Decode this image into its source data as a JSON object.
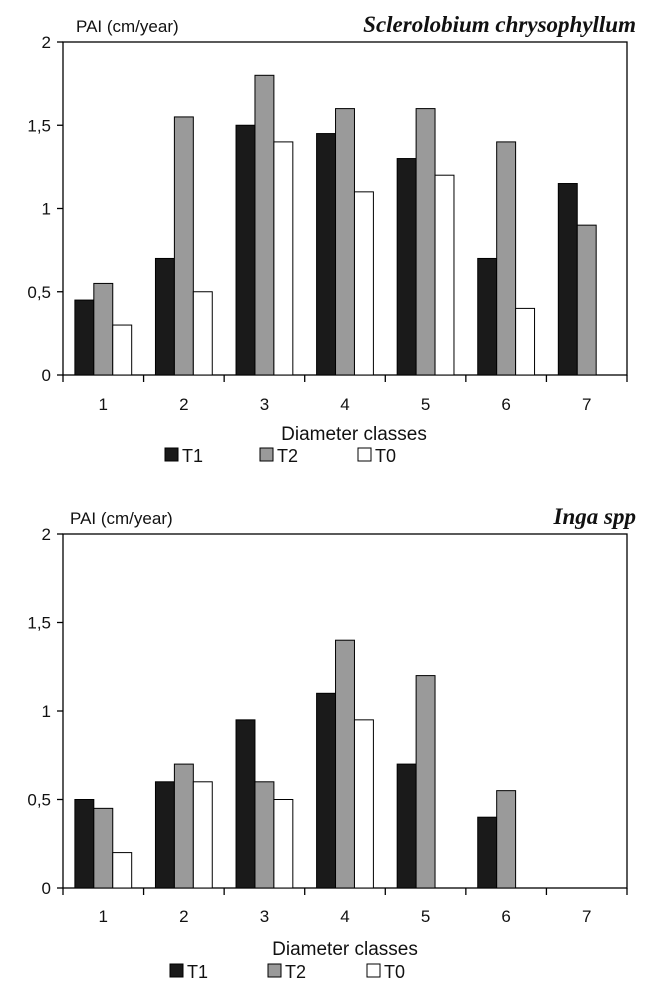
{
  "colors": {
    "T1": "#1a1a1a",
    "T2": "#9a9a9a",
    "T0": "#ffffff",
    "stroke": "#000000"
  },
  "chart_data": [
    {
      "type": "bar",
      "title": "Sclerolobium chrysophyllum",
      "ylabel": "PAI (cm/year)",
      "xlabel": "Diameter classes",
      "categories": [
        "1",
        "2",
        "3",
        "4",
        "5",
        "6",
        "7"
      ],
      "ylim": [
        0,
        2
      ],
      "yticks": [
        0,
        0.5,
        1,
        1.5,
        2
      ],
      "ytick_labels": [
        "0",
        "0,5",
        "1",
        "1,5",
        "2"
      ],
      "grid": false,
      "legend_placement": "bottom",
      "series": [
        {
          "name": "T1",
          "values": [
            0.45,
            0.7,
            1.5,
            1.45,
            1.3,
            0.7,
            1.15
          ]
        },
        {
          "name": "T2",
          "values": [
            0.55,
            1.55,
            1.8,
            1.6,
            1.6,
            1.4,
            0.9
          ]
        },
        {
          "name": "T0",
          "values": [
            0.3,
            0.5,
            1.4,
            1.1,
            1.2,
            0.4,
            0
          ]
        }
      ]
    },
    {
      "type": "bar",
      "title": "Inga spp",
      "ylabel": "PAI (cm/year)",
      "xlabel": "Diameter classes",
      "categories": [
        "1",
        "2",
        "3",
        "4",
        "5",
        "6",
        "7"
      ],
      "ylim": [
        0,
        2
      ],
      "yticks": [
        0,
        0.5,
        1,
        1.5,
        2
      ],
      "ytick_labels": [
        "0",
        "0,5",
        "1",
        "1,5",
        "2"
      ],
      "grid": false,
      "legend_placement": "bottom",
      "series": [
        {
          "name": "T1",
          "values": [
            0.5,
            0.6,
            0.95,
            1.1,
            0.7,
            0.4,
            0
          ]
        },
        {
          "name": "T2",
          "values": [
            0.45,
            0.7,
            0.6,
            1.4,
            1.2,
            0.55,
            0
          ]
        },
        {
          "name": "T0",
          "values": [
            0.2,
            0.6,
            0.5,
            0.95,
            0,
            0,
            0
          ]
        }
      ]
    }
  ]
}
